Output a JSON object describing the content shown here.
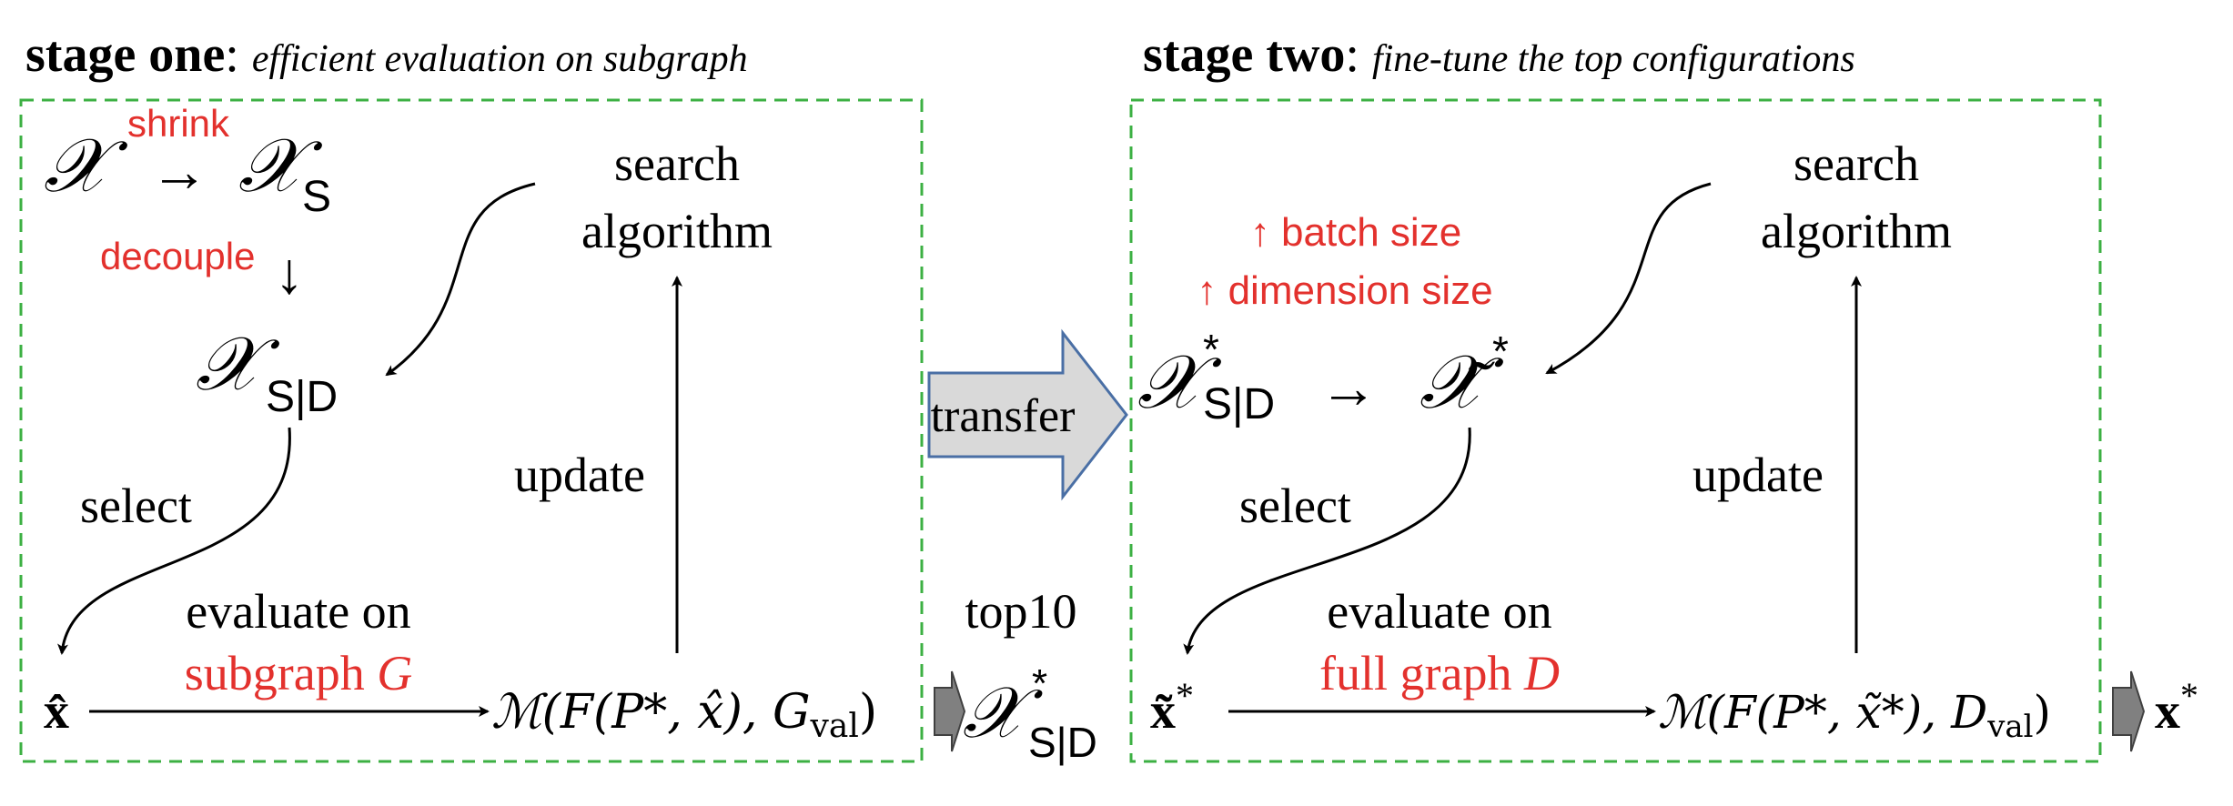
{
  "colors": {
    "accent_red": "#e3312d",
    "box_dash": "#3cb043",
    "transfer_fill": "#d9d9d9",
    "transfer_stroke": "#4a6fa5",
    "small_arrow": "#808080"
  },
  "stage_one": {
    "title_bold": "stage one",
    "title_colon": ":",
    "title_italic": "efficient evaluation on subgraph",
    "space_x": "𝒳",
    "arrow": "→",
    "space_xs": "𝒳",
    "sub_s": "S",
    "shrink_label": "shrink",
    "decouple_label": "decouple",
    "down_arrow": "↓",
    "space_xsd": "𝒳",
    "sub_sd": "S|D",
    "search_line1": "search",
    "search_line2": "algorithm",
    "select_label": "select",
    "update_label": "update",
    "eval_line1": "evaluate on",
    "eval_line2_text": "subgraph ",
    "eval_line2_var": "G",
    "xhat": "x̂",
    "metric": "ℳ(F(P*, x̂), G",
    "metric_sub": "val",
    "metric_close": ")"
  },
  "transfer": {
    "label": "transfer",
    "top_label": "top10",
    "result_x": "𝒳",
    "result_sup": "*",
    "result_sub": "S|D"
  },
  "stage_two": {
    "title_bold": "stage two",
    "title_colon": ":",
    "title_italic": "fine-tune the top configurations",
    "batch_label": "↑ batch size",
    "dim_label": "↑ dimension size",
    "space_x": "𝒳",
    "sup": "*",
    "sub_sd": "S|D",
    "arrow": "→",
    "tilde_x": "𝒳̃",
    "search_line1": "search",
    "search_line2": "algorithm",
    "select_label": "select",
    "update_label": "update",
    "eval_line1": "evaluate on",
    "eval_line2_text": "full graph ",
    "eval_line2_var": "D",
    "xtilde": "x̃",
    "metric": "ℳ(F(P*, x̃*), D",
    "metric_sub": "val",
    "metric_close": ")",
    "final_x": "x",
    "final_sup": "*"
  }
}
